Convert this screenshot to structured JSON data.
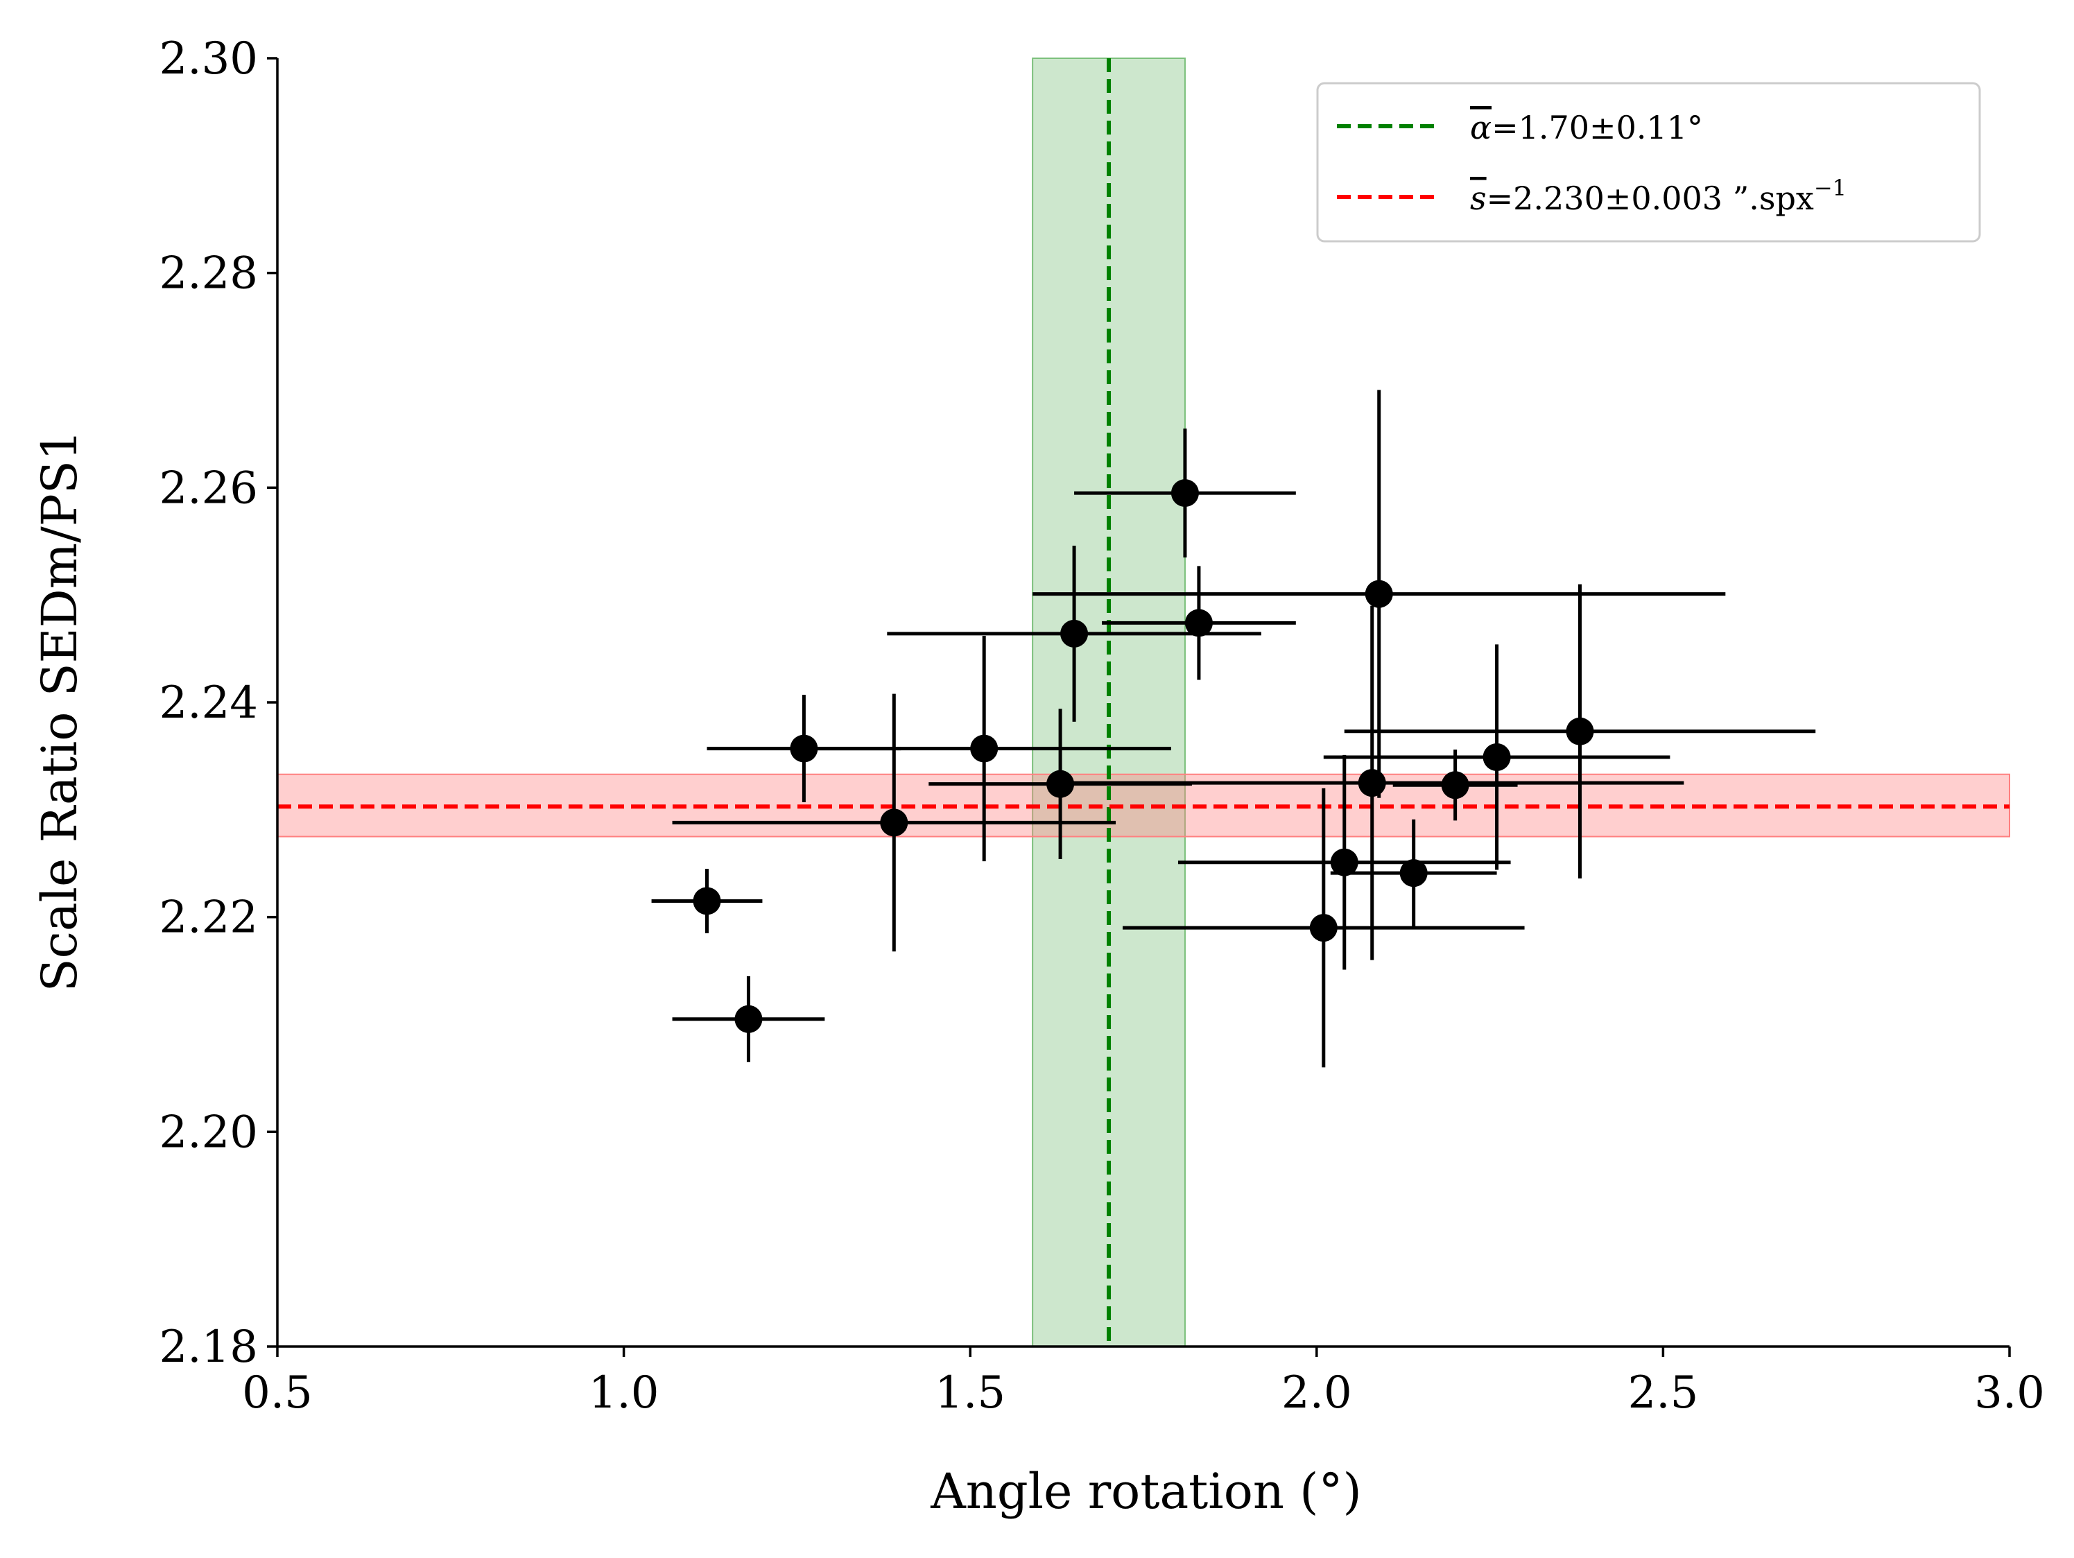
{
  "chart_data": {
    "type": "scatter",
    "title": "",
    "xlabel": "Angle rotation (°)",
    "ylabel": "Scale Ratio SEDm/PS1",
    "xlim": [
      0.5,
      3.0
    ],
    "ylim": [
      2.18,
      2.3
    ],
    "xticks": [
      0.5,
      1.0,
      1.5,
      2.0,
      2.5,
      3.0
    ],
    "xtick_labels": [
      "0.5",
      "1.0",
      "1.5",
      "2.0",
      "2.5",
      "3.0"
    ],
    "yticks": [
      2.18,
      2.2,
      2.22,
      2.24,
      2.26,
      2.28,
      2.3
    ],
    "ytick_labels": [
      "2.18",
      "2.20",
      "2.22",
      "2.24",
      "2.26",
      "2.28",
      "2.30"
    ],
    "grid": false,
    "legend_position": "top-right",
    "series": [
      {
        "type": "errorbar",
        "color": "#000000",
        "points": [
          {
            "x": 1.12,
            "y": 2.2215,
            "xerr": 0.08,
            "yerr": 0.003
          },
          {
            "x": 1.18,
            "y": 2.2105,
            "xerr": 0.11,
            "yerr": 0.004
          },
          {
            "x": 1.26,
            "y": 2.2357,
            "xerr": 0.14,
            "yerr": 0.005
          },
          {
            "x": 1.39,
            "y": 2.2288,
            "xerr": 0.32,
            "yerr": 0.012
          },
          {
            "x": 1.52,
            "y": 2.2357,
            "xerr": 0.27,
            "yerr": 0.0105
          },
          {
            "x": 1.63,
            "y": 2.2324,
            "xerr": 0.19,
            "yerr": 0.007
          },
          {
            "x": 1.65,
            "y": 2.2464,
            "xerr": 0.27,
            "yerr": 0.0082
          },
          {
            "x": 1.81,
            "y": 2.2595,
            "xerr": 0.16,
            "yerr": 0.006
          },
          {
            "x": 1.83,
            "y": 2.2474,
            "xerr": 0.14,
            "yerr": 0.0053
          },
          {
            "x": 2.01,
            "y": 2.219,
            "xerr": 0.29,
            "yerr": 0.013
          },
          {
            "x": 2.04,
            "y": 2.2251,
            "xerr": 0.24,
            "yerr": 0.01
          },
          {
            "x": 2.08,
            "y": 2.2325,
            "xerr": 0.45,
            "yerr": 0.0165
          },
          {
            "x": 2.09,
            "y": 2.2501,
            "xerr": 0.5,
            "yerr": 0.019
          },
          {
            "x": 2.14,
            "y": 2.2241,
            "xerr": 0.12,
            "yerr": 0.005
          },
          {
            "x": 2.2,
            "y": 2.2323,
            "xerr": 0.09,
            "yerr": 0.0033
          },
          {
            "x": 2.26,
            "y": 2.2349,
            "xerr": 0.25,
            "yerr": 0.0105
          },
          {
            "x": 2.38,
            "y": 2.2373,
            "xerr": 0.34,
            "yerr": 0.0137
          }
        ]
      }
    ],
    "reference_lines": [
      {
        "orientation": "vertical",
        "value": 1.7,
        "band": [
          1.59,
          1.81
        ],
        "color": "#008000",
        "band_color": "#7cc07c",
        "style": "dashed",
        "legend_prefix": "α",
        "legend_label": "=1.70±0.11°"
      },
      {
        "orientation": "horizontal",
        "value": 2.2303,
        "band": [
          2.2275,
          2.2333
        ],
        "color": "#ff0000",
        "band_color": "#ff8080",
        "style": "dashed",
        "legend_prefix": "s",
        "legend_label": "=2.230±0.003 ”.spx",
        "legend_superscript": "−1"
      }
    ]
  }
}
